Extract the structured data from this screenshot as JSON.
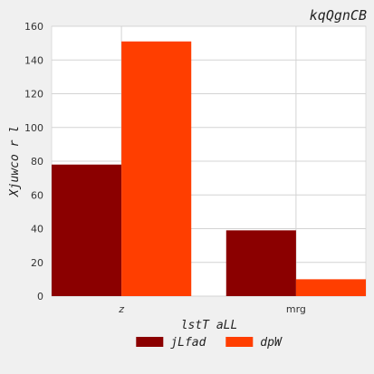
{
  "chart_data": {
    "type": "bar",
    "title": "kqQgnCB",
    "xlabel": "lstT aLL",
    "ylabel": "Xjuwco r l",
    "categories": [
      "z",
      "mrg"
    ],
    "series": [
      {
        "name": "jLfad",
        "values": [
          78,
          39
        ],
        "color": "#8b0000"
      },
      {
        "name": "dpW",
        "values": [
          151,
          10
        ],
        "color": "#ff3e00"
      }
    ],
    "ylim": [
      0,
      160
    ],
    "yticks": [
      0,
      20,
      40,
      60,
      80,
      100,
      120,
      140,
      160
    ],
    "grid": true,
    "legend_position": "bottom-center"
  }
}
